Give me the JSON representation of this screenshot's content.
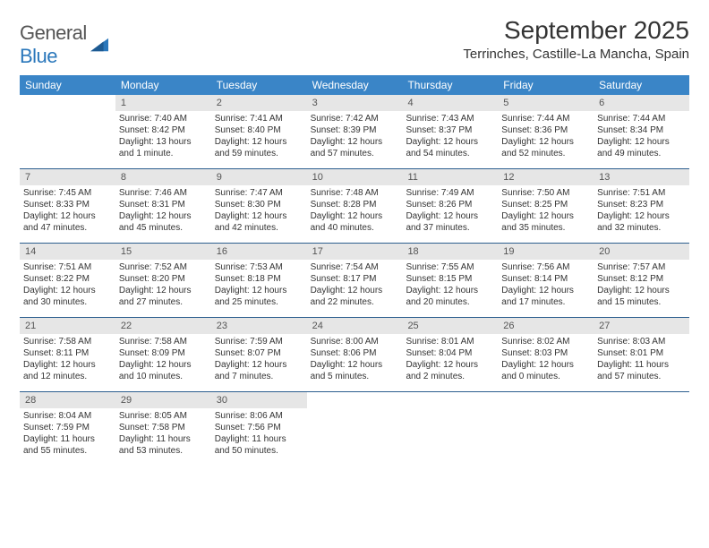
{
  "logo": {
    "word1": "General",
    "word2": "Blue"
  },
  "title": "September 2025",
  "location": "Terrinches, Castille-La Mancha, Spain",
  "colors": {
    "header_bg": "#3a85c7",
    "header_text": "#ffffff",
    "daynum_bg": "#e6e6e6",
    "row_border": "#2d5f8f",
    "text": "#333333",
    "logo_gray": "#555555",
    "logo_blue": "#2a77bb",
    "page_bg": "#ffffff"
  },
  "typography": {
    "title_fontsize": 28,
    "location_fontsize": 15,
    "header_fontsize": 12,
    "daynum_fontsize": 11,
    "body_fontsize": 10
  },
  "dayNames": [
    "Sunday",
    "Monday",
    "Tuesday",
    "Wednesday",
    "Thursday",
    "Friday",
    "Saturday"
  ],
  "weeks": [
    [
      null,
      {
        "n": "1",
        "sr": "Sunrise: 7:40 AM",
        "ss": "Sunset: 8:42 PM",
        "dl": "Daylight: 13 hours and 1 minute."
      },
      {
        "n": "2",
        "sr": "Sunrise: 7:41 AM",
        "ss": "Sunset: 8:40 PM",
        "dl": "Daylight: 12 hours and 59 minutes."
      },
      {
        "n": "3",
        "sr": "Sunrise: 7:42 AM",
        "ss": "Sunset: 8:39 PM",
        "dl": "Daylight: 12 hours and 57 minutes."
      },
      {
        "n": "4",
        "sr": "Sunrise: 7:43 AM",
        "ss": "Sunset: 8:37 PM",
        "dl": "Daylight: 12 hours and 54 minutes."
      },
      {
        "n": "5",
        "sr": "Sunrise: 7:44 AM",
        "ss": "Sunset: 8:36 PM",
        "dl": "Daylight: 12 hours and 52 minutes."
      },
      {
        "n": "6",
        "sr": "Sunrise: 7:44 AM",
        "ss": "Sunset: 8:34 PM",
        "dl": "Daylight: 12 hours and 49 minutes."
      }
    ],
    [
      {
        "n": "7",
        "sr": "Sunrise: 7:45 AM",
        "ss": "Sunset: 8:33 PM",
        "dl": "Daylight: 12 hours and 47 minutes."
      },
      {
        "n": "8",
        "sr": "Sunrise: 7:46 AM",
        "ss": "Sunset: 8:31 PM",
        "dl": "Daylight: 12 hours and 45 minutes."
      },
      {
        "n": "9",
        "sr": "Sunrise: 7:47 AM",
        "ss": "Sunset: 8:30 PM",
        "dl": "Daylight: 12 hours and 42 minutes."
      },
      {
        "n": "10",
        "sr": "Sunrise: 7:48 AM",
        "ss": "Sunset: 8:28 PM",
        "dl": "Daylight: 12 hours and 40 minutes."
      },
      {
        "n": "11",
        "sr": "Sunrise: 7:49 AM",
        "ss": "Sunset: 8:26 PM",
        "dl": "Daylight: 12 hours and 37 minutes."
      },
      {
        "n": "12",
        "sr": "Sunrise: 7:50 AM",
        "ss": "Sunset: 8:25 PM",
        "dl": "Daylight: 12 hours and 35 minutes."
      },
      {
        "n": "13",
        "sr": "Sunrise: 7:51 AM",
        "ss": "Sunset: 8:23 PM",
        "dl": "Daylight: 12 hours and 32 minutes."
      }
    ],
    [
      {
        "n": "14",
        "sr": "Sunrise: 7:51 AM",
        "ss": "Sunset: 8:22 PM",
        "dl": "Daylight: 12 hours and 30 minutes."
      },
      {
        "n": "15",
        "sr": "Sunrise: 7:52 AM",
        "ss": "Sunset: 8:20 PM",
        "dl": "Daylight: 12 hours and 27 minutes."
      },
      {
        "n": "16",
        "sr": "Sunrise: 7:53 AM",
        "ss": "Sunset: 8:18 PM",
        "dl": "Daylight: 12 hours and 25 minutes."
      },
      {
        "n": "17",
        "sr": "Sunrise: 7:54 AM",
        "ss": "Sunset: 8:17 PM",
        "dl": "Daylight: 12 hours and 22 minutes."
      },
      {
        "n": "18",
        "sr": "Sunrise: 7:55 AM",
        "ss": "Sunset: 8:15 PM",
        "dl": "Daylight: 12 hours and 20 minutes."
      },
      {
        "n": "19",
        "sr": "Sunrise: 7:56 AM",
        "ss": "Sunset: 8:14 PM",
        "dl": "Daylight: 12 hours and 17 minutes."
      },
      {
        "n": "20",
        "sr": "Sunrise: 7:57 AM",
        "ss": "Sunset: 8:12 PM",
        "dl": "Daylight: 12 hours and 15 minutes."
      }
    ],
    [
      {
        "n": "21",
        "sr": "Sunrise: 7:58 AM",
        "ss": "Sunset: 8:11 PM",
        "dl": "Daylight: 12 hours and 12 minutes."
      },
      {
        "n": "22",
        "sr": "Sunrise: 7:58 AM",
        "ss": "Sunset: 8:09 PM",
        "dl": "Daylight: 12 hours and 10 minutes."
      },
      {
        "n": "23",
        "sr": "Sunrise: 7:59 AM",
        "ss": "Sunset: 8:07 PM",
        "dl": "Daylight: 12 hours and 7 minutes."
      },
      {
        "n": "24",
        "sr": "Sunrise: 8:00 AM",
        "ss": "Sunset: 8:06 PM",
        "dl": "Daylight: 12 hours and 5 minutes."
      },
      {
        "n": "25",
        "sr": "Sunrise: 8:01 AM",
        "ss": "Sunset: 8:04 PM",
        "dl": "Daylight: 12 hours and 2 minutes."
      },
      {
        "n": "26",
        "sr": "Sunrise: 8:02 AM",
        "ss": "Sunset: 8:03 PM",
        "dl": "Daylight: 12 hours and 0 minutes."
      },
      {
        "n": "27",
        "sr": "Sunrise: 8:03 AM",
        "ss": "Sunset: 8:01 PM",
        "dl": "Daylight: 11 hours and 57 minutes."
      }
    ],
    [
      {
        "n": "28",
        "sr": "Sunrise: 8:04 AM",
        "ss": "Sunset: 7:59 PM",
        "dl": "Daylight: 11 hours and 55 minutes."
      },
      {
        "n": "29",
        "sr": "Sunrise: 8:05 AM",
        "ss": "Sunset: 7:58 PM",
        "dl": "Daylight: 11 hours and 53 minutes."
      },
      {
        "n": "30",
        "sr": "Sunrise: 8:06 AM",
        "ss": "Sunset: 7:56 PM",
        "dl": "Daylight: 11 hours and 50 minutes."
      },
      null,
      null,
      null,
      null
    ]
  ]
}
